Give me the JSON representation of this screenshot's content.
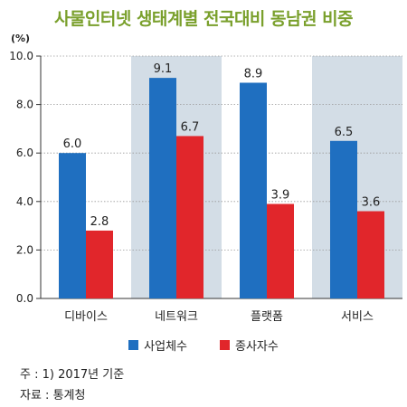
{
  "chart_data": {
    "type": "bar",
    "title": "사물인터넷 생태계별 전국대비 동남권 비중",
    "unit_label": "(%)",
    "categories": [
      "디바이스",
      "네트워크",
      "플랫폼",
      "서비스"
    ],
    "series": [
      {
        "name": "사업체수",
        "values": [
          6.0,
          9.1,
          8.9,
          6.5
        ],
        "color": "#1f6fc0"
      },
      {
        "name": "종사자수",
        "values": [
          2.8,
          6.7,
          3.9,
          3.6
        ],
        "color": "#e1262b"
      }
    ],
    "ylim": [
      0,
      10
    ],
    "yticks": [
      "0.0",
      "2.0",
      "4.0",
      "6.0",
      "8.0",
      "10.0"
    ],
    "data_labels": [
      [
        "6.0",
        "9.1",
        "8.9",
        "6.5"
      ],
      [
        "2.8",
        "6.7",
        "3.9",
        "3.6"
      ]
    ],
    "shaded_bands": [
      false,
      true,
      false,
      true
    ],
    "band_color": "#d3dde6",
    "legend_position": "bottom"
  },
  "notes": {
    "line1": "주 : 1) 2017년 기준",
    "line2": "자료 : 통계청"
  }
}
